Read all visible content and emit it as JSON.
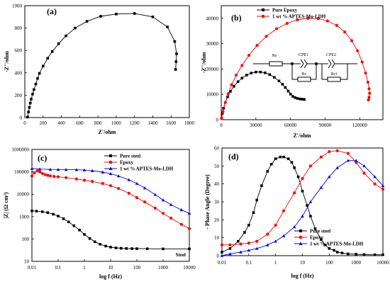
{
  "chart_data": [
    {
      "panel": "(a)",
      "type": "scatter",
      "xlabel": "Z'/ohm",
      "ylabel": "-Z''/ohm",
      "xlim": [
        0,
        1800
      ],
      "ylim": [
        0,
        1000
      ],
      "xticks": [
        "0",
        "200",
        "400",
        "600",
        "800",
        "1000",
        "1200",
        "1400",
        "1600",
        "1800"
      ],
      "yticks": [
        "0",
        "200",
        "400",
        "600",
        "800",
        "1000"
      ],
      "series": [
        {
          "color": "#000000",
          "marker": "square",
          "line": true,
          "x": [
            30,
            40,
            50,
            60,
            70,
            85,
            100,
            120,
            140,
            160,
            200,
            250,
            300,
            370,
            450,
            550,
            680,
            830,
            1000,
            1200,
            1400,
            1560,
            1640,
            1660,
            1655,
            1650
          ],
          "y": [
            5,
            50,
            90,
            130,
            165,
            210,
            250,
            300,
            350,
            395,
            460,
            530,
            590,
            660,
            730,
            800,
            860,
            905,
            925,
            930,
            900,
            810,
            680,
            570,
            500,
            430
          ]
        }
      ]
    },
    {
      "panel": "(b)",
      "type": "line",
      "xlabel": "Z'/ohm",
      "ylabel": "-Z''/ohm",
      "xlim": [
        0,
        140000
      ],
      "ylim": [
        0,
        45000
      ],
      "xticks": [
        "0",
        "30000",
        "60000",
        "90000",
        "120000"
      ],
      "yticks": [
        "0",
        "10000",
        "20000",
        "30000",
        "40000"
      ],
      "legend_position": "top-right",
      "series": [
        {
          "name": "Pure Epoxy",
          "color": "#000000",
          "marker": "square",
          "x": [
            300,
            1000,
            2000,
            3500,
            5500,
            8000,
            11000,
            14500,
            18000,
            22000,
            26000,
            30000,
            34000,
            38000,
            42000,
            46000,
            50000,
            53000,
            55500,
            58000,
            60000,
            62000,
            64000,
            66000,
            68000,
            70000,
            72000
          ],
          "y": [
            500,
            2500,
            4500,
            6800,
            9000,
            11200,
            13200,
            15000,
            16400,
            17600,
            18400,
            18800,
            18800,
            18500,
            17800,
            16700,
            15300,
            14000,
            12700,
            11300,
            10100,
            9200,
            8700,
            8400,
            8200,
            8100,
            8000
          ]
        },
        {
          "name": "1 wt % APTES-Mo-LDH",
          "color": "#ff0000",
          "marker": "circle",
          "x": [
            300,
            1500,
            3500,
            6000,
            9000,
            13000,
            18000,
            24000,
            31000,
            39000,
            48000,
            57000,
            66000,
            75000,
            84000,
            92000,
            100000,
            107000,
            113000,
            118000,
            122000,
            125000,
            127000,
            128000,
            128500,
            128000,
            127500
          ],
          "y": [
            500,
            3200,
            6800,
            10200,
            13800,
            17600,
            21400,
            25400,
            29300,
            32900,
            35900,
            38000,
            39400,
            40000,
            39900,
            39000,
            37200,
            34600,
            31200,
            27200,
            22800,
            18400,
            14800,
            12200,
            10400,
            8800,
            7800
          ]
        }
      ],
      "circuit_labels": [
        "Rs",
        "CPE1",
        "Rc",
        "CPE2",
        "Rct"
      ]
    },
    {
      "panel": "(c)",
      "type": "line",
      "xlabel": "log f (Hz)",
      "ylabel": "|Z| (Ω cm²)",
      "xscale": "log",
      "yscale": "log",
      "xlim": [
        0.01,
        10000
      ],
      "ylim": [
        10,
        1000000
      ],
      "xticks": [
        "0.01",
        "0.1",
        "1",
        "10",
        "100",
        "1000",
        "10000"
      ],
      "yticks": [
        "10",
        "100",
        "1000",
        "10000",
        "100000",
        "1000000"
      ],
      "legend_position": "top-right",
      "annotation": "Steel",
      "series": [
        {
          "name": "Pure steel",
          "color": "#000000",
          "marker": "square",
          "x": [
            0.01,
            0.015,
            0.025,
            0.04,
            0.065,
            0.1,
            0.16,
            0.25,
            0.4,
            0.65,
            1,
            1.6,
            2.5,
            4,
            6.5,
            10,
            16,
            25,
            40,
            65,
            100,
            250,
            1000,
            10000
          ],
          "y": [
            1800,
            1750,
            1650,
            1500,
            1280,
            1050,
            800,
            580,
            390,
            250,
            160,
            105,
            75,
            58,
            48,
            43,
            40,
            38.5,
            37.5,
            37,
            37,
            36.5,
            36,
            36
          ]
        },
        {
          "name": "Epoxy",
          "color": "#ff0000",
          "marker": "circle",
          "x": [
            0.01,
            0.0125,
            0.016,
            0.02,
            0.025,
            0.032,
            0.04,
            0.05,
            0.07,
            0.1,
            0.2,
            0.5,
            1,
            2,
            5,
            10,
            20,
            50,
            100,
            200,
            500,
            1000,
            2000,
            5000,
            10000
          ],
          "y": [
            65000,
            90000,
            110000,
            100000,
            85000,
            75000,
            70000,
            66000,
            62000,
            60000,
            55000,
            48000,
            42000,
            37000,
            30000,
            24000,
            18000,
            11000,
            7000,
            4500,
            2400,
            1400,
            850,
            450,
            290
          ]
        },
        {
          "name": "1 wt % APTES-Mo-LDH",
          "color": "#0000ff",
          "marker": "triangle",
          "x": [
            0.01,
            0.02,
            0.05,
            0.1,
            0.2,
            0.5,
            1,
            2,
            5,
            10,
            20,
            50,
            100,
            200,
            500,
            1000,
            2000,
            5000,
            10000
          ],
          "y": [
            140000,
            133000,
            128000,
            127000,
            126000,
            124000,
            120000,
            112000,
            97000,
            82000,
            65000,
            44000,
            30000,
            19000,
            9600,
            5500,
            3400,
            2000,
            1400
          ]
        }
      ]
    },
    {
      "panel": "(d)",
      "type": "line",
      "xlabel": "log f (Hz)",
      "ylabel": "- Phase Angle (Degree)",
      "xscale": "log",
      "xlim": [
        0.01,
        10000
      ],
      "ylim": [
        0,
        60
      ],
      "xticks": [
        "0.01",
        "0.1",
        "1",
        "10",
        "100",
        "1000",
        "10000"
      ],
      "yticks": [
        "0",
        "10",
        "20",
        "30",
        "40",
        "50",
        "60"
      ],
      "legend_position": "bottom-center",
      "series": [
        {
          "name": "Pure steel",
          "color": "#000000",
          "marker": "square",
          "x": [
            0.01,
            0.02,
            0.04,
            0.07,
            0.1,
            0.15,
            0.2,
            0.3,
            0.5,
            0.7,
            1,
            1.5,
            2,
            3,
            4,
            5,
            7,
            10,
            15,
            20,
            30,
            50,
            70,
            100,
            150,
            200,
            300,
            500,
            1000,
            2000,
            5000,
            10000
          ],
          "y": [
            2,
            4,
            8,
            13,
            17,
            24,
            31,
            39,
            47,
            51,
            54,
            55,
            55,
            54,
            52,
            49,
            44,
            36,
            28,
            22,
            15,
            9,
            6,
            4,
            3,
            2,
            1.5,
            1,
            0.8,
            0.6,
            0.5,
            0.5
          ]
        },
        {
          "name": "Epoxy",
          "color": "#ff0000",
          "marker": "circle",
          "x": [
            0.01,
            0.02,
            0.05,
            0.1,
            0.2,
            0.5,
            1,
            2,
            5,
            10,
            20,
            50,
            100,
            200,
            500,
            1000,
            2000,
            5000,
            10000
          ],
          "y": [
            6,
            6,
            6.5,
            7,
            8,
            12,
            17,
            25,
            35,
            43,
            50,
            55,
            58,
            58.5,
            57,
            52,
            46,
            40,
            37
          ]
        },
        {
          "name": "1 wt % APTES-Mo-LDH",
          "color": "#0000ff",
          "marker": "triangle",
          "x": [
            0.01,
            0.02,
            0.05,
            0.1,
            0.2,
            0.5,
            1,
            2,
            5,
            10,
            20,
            50,
            100,
            200,
            500,
            1000,
            2000,
            5000,
            10000
          ],
          "y": [
            0,
            1,
            2,
            3,
            4,
            6,
            8,
            11,
            16,
            22,
            30,
            38,
            44,
            49,
            53,
            53,
            50,
            44,
            39
          ]
        }
      ]
    }
  ]
}
